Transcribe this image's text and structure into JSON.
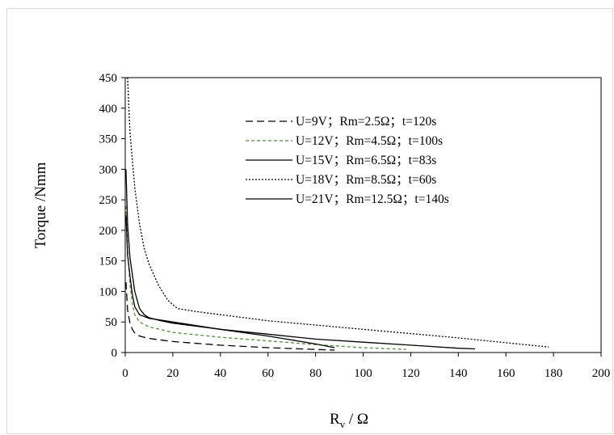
{
  "chart_data": {
    "type": "line",
    "xlabel": "Rv / Ω",
    "xlabel_main": "R",
    "xlabel_sub": "v",
    "xlabel_rest": " / Ω",
    "ylabel": "Torque /Nmm",
    "xlim": [
      0,
      200
    ],
    "ylim": [
      0,
      450
    ],
    "x_ticks": [
      "0",
      "20",
      "40",
      "60",
      "80",
      "100",
      "120",
      "140",
      "160",
      "180",
      "200"
    ],
    "y_ticks": [
      "0",
      "50",
      "100",
      "150",
      "200",
      "250",
      "300",
      "350",
      "400",
      "450"
    ],
    "grid": false,
    "legend_position": "inside-top-center",
    "series": [
      {
        "name": "U=9V；Rm=2.5Ω；t=120s",
        "color": "#000000",
        "dash": "9,5",
        "points": [
          [
            0.3,
            115
          ],
          [
            1,
            70
          ],
          [
            2,
            48
          ],
          [
            3,
            38
          ],
          [
            4,
            32
          ],
          [
            6,
            27
          ],
          [
            10,
            23
          ],
          [
            20,
            18
          ],
          [
            40,
            12
          ],
          [
            60,
            8
          ],
          [
            80,
            5
          ],
          [
            88,
            4
          ]
        ]
      },
      {
        "name": "U=12V；Rm=4.5Ω；t=100s",
        "color": "#5a8a3c",
        "dash": "4,3",
        "points": [
          [
            0.3,
            240
          ],
          [
            1,
            170
          ],
          [
            2,
            110
          ],
          [
            3,
            80
          ],
          [
            4,
            62
          ],
          [
            6,
            50
          ],
          [
            10,
            42
          ],
          [
            20,
            33
          ],
          [
            40,
            25
          ],
          [
            60,
            19
          ],
          [
            80,
            13
          ],
          [
            100,
            8
          ],
          [
            118,
            5
          ]
        ]
      },
      {
        "name": "U=15V；Rm=6.5Ω；t=83s",
        "color": "#000000",
        "dash": "",
        "points": [
          [
            0.3,
            300
          ],
          [
            1,
            210
          ],
          [
            2,
            155
          ],
          [
            4,
            100
          ],
          [
            6,
            72
          ],
          [
            8,
            62
          ],
          [
            10,
            57
          ],
          [
            15,
            52
          ],
          [
            20,
            48
          ],
          [
            40,
            38
          ],
          [
            60,
            30
          ],
          [
            80,
            22
          ],
          [
            100,
            17
          ],
          [
            120,
            12
          ],
          [
            140,
            7
          ],
          [
            147,
            6
          ]
        ]
      },
      {
        "name": "U=18V；Rm=8.5Ω；t=60s",
        "color": "#000000",
        "dash": "2,2",
        "points": [
          [
            1,
            450
          ],
          [
            2,
            360
          ],
          [
            4,
            270
          ],
          [
            6,
            210
          ],
          [
            8,
            170
          ],
          [
            10,
            145
          ],
          [
            14,
            110
          ],
          [
            18,
            85
          ],
          [
            22,
            72
          ],
          [
            30,
            67
          ],
          [
            60,
            52
          ],
          [
            100,
            38
          ],
          [
            140,
            24
          ],
          [
            178,
            9
          ]
        ]
      },
      {
        "name": "U=21V；Rm=12.5Ω；t=140s",
        "color": "#000000",
        "dash": "",
        "points": [
          [
            0.3,
            225
          ],
          [
            1,
            160
          ],
          [
            2,
            125
          ],
          [
            3,
            95
          ],
          [
            4,
            75
          ],
          [
            6,
            62
          ],
          [
            10,
            56
          ],
          [
            20,
            50
          ],
          [
            40,
            38
          ],
          [
            60,
            27
          ],
          [
            80,
            14
          ],
          [
            88,
            8
          ]
        ]
      }
    ]
  }
}
